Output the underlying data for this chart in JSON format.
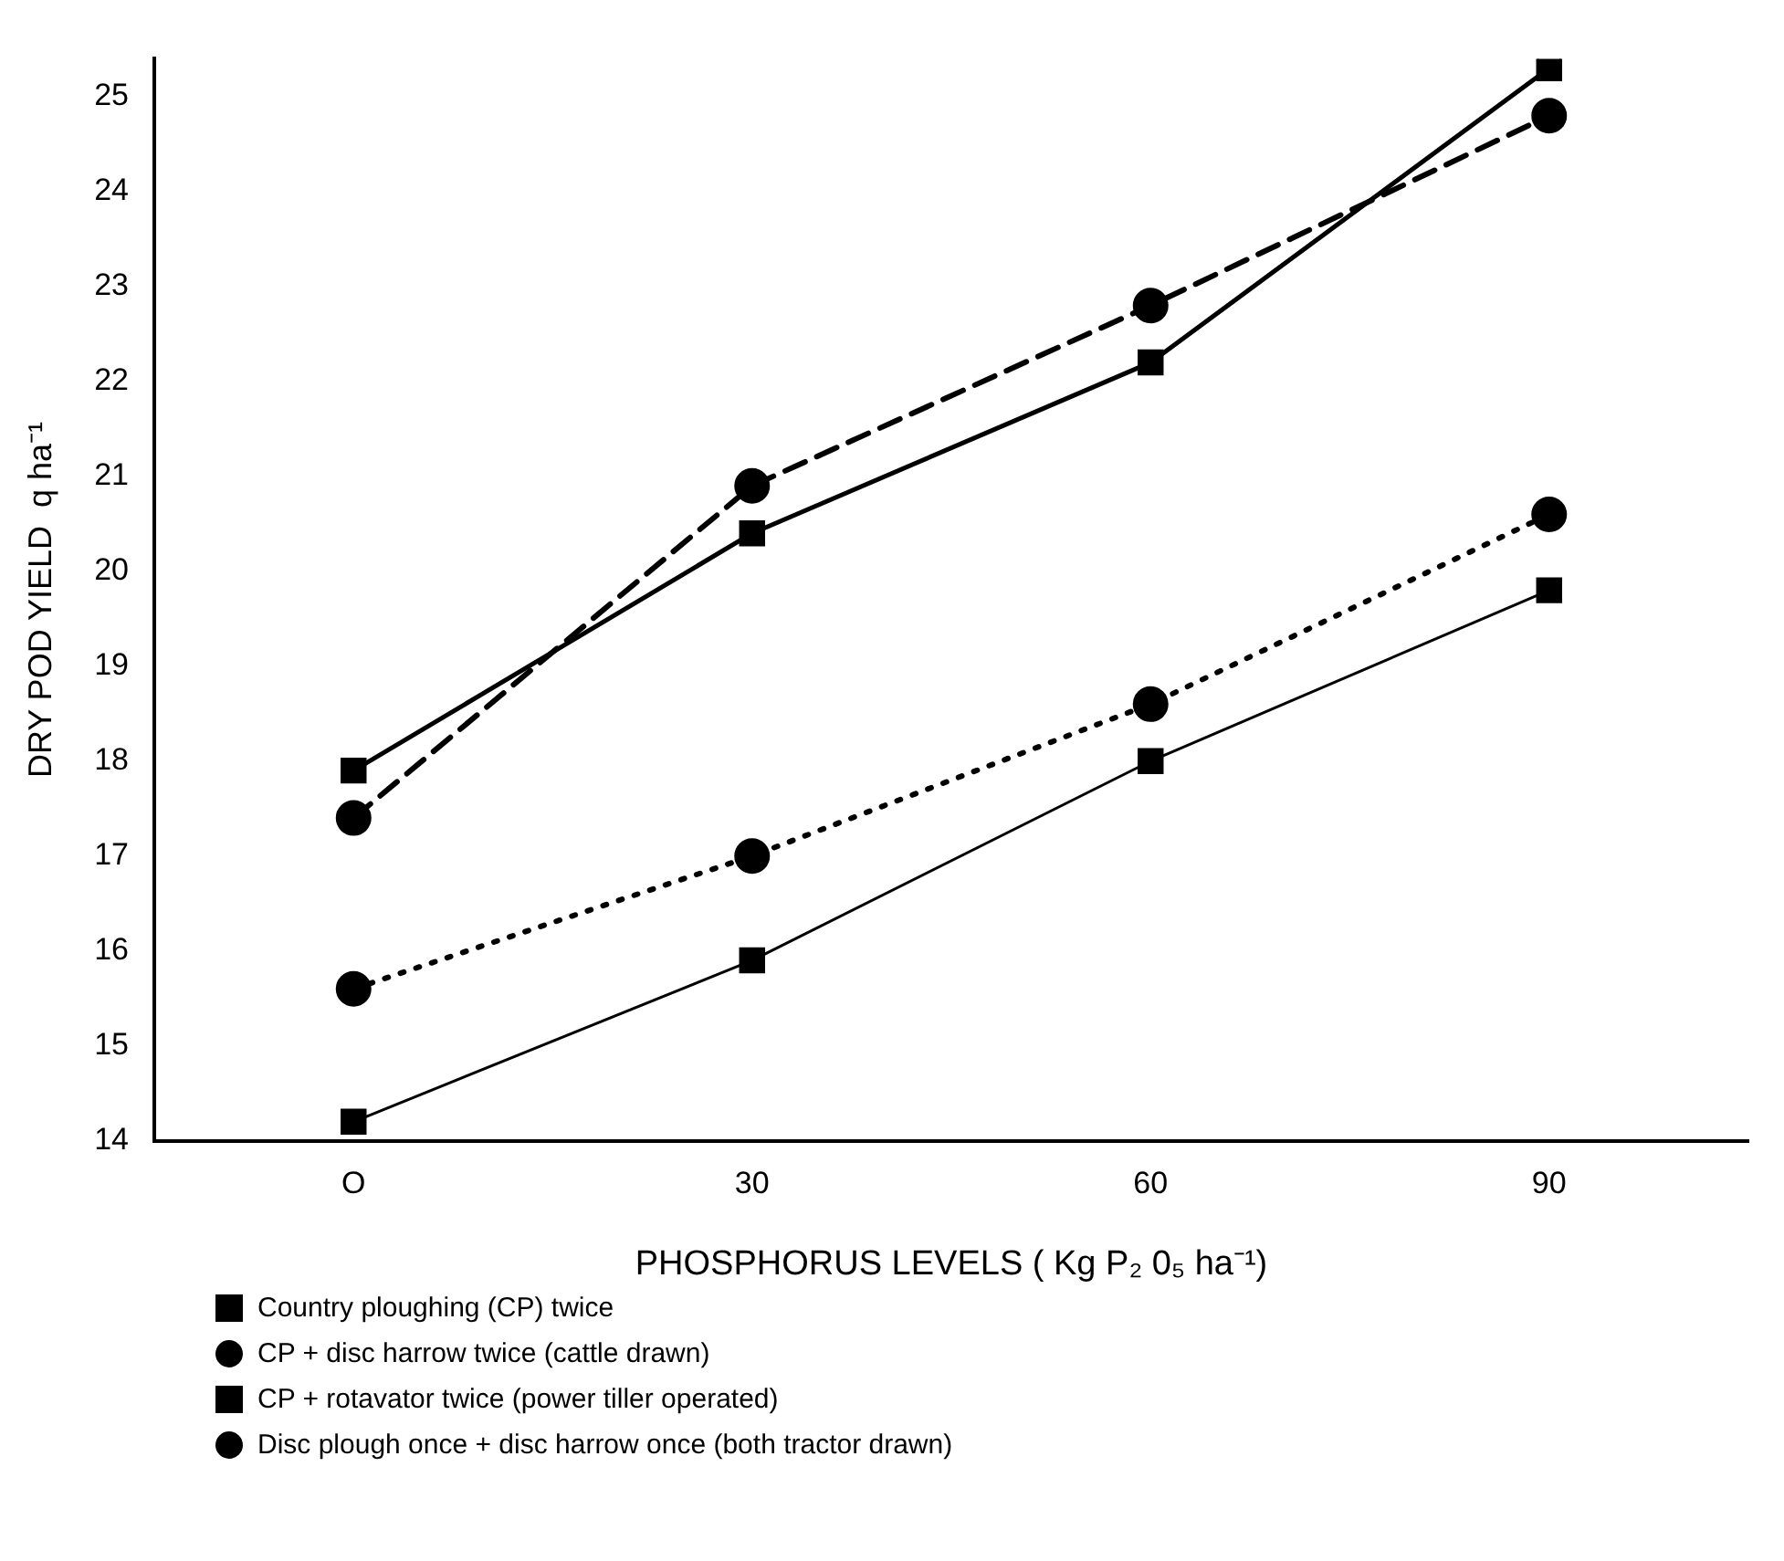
{
  "chart_data": {
    "type": "line",
    "xlabel": "PHOSPHORUS LEVELS ( Kg P₂ 0₅ ha⁻¹)",
    "ylabel": "DRY POD YIELD  q ha⁻¹",
    "categories": [
      "O",
      "30",
      "60",
      "90"
    ],
    "ylim": [
      14,
      25.4
    ],
    "yticks": [
      14,
      15,
      16,
      17,
      18,
      19,
      20,
      21,
      22,
      23,
      24,
      25
    ],
    "grid": false,
    "legend": "bottom",
    "series": [
      {
        "name": "Country ploughing (CP) twice",
        "color": "#000000",
        "marker": "square",
        "line_style": "solid",
        "values": [
          14.2,
          15.9,
          18.0,
          19.8
        ]
      },
      {
        "name": "CP + disc harrow twice (cattle drawn)",
        "color": "#000000",
        "marker": "circle",
        "line_style": "dotted",
        "values": [
          15.6,
          17.0,
          18.6,
          20.6
        ]
      },
      {
        "name": "CP + rotavator twice (power tiller operated)",
        "color": "#000000",
        "marker": "square",
        "line_style": "solid",
        "values": [
          17.9,
          20.4,
          22.2,
          25.3
        ]
      },
      {
        "name": "Disc plough once + disc harrow once (both tractor drawn)",
        "color": "#000000",
        "marker": "circle",
        "line_style": "dashed",
        "values": [
          17.4,
          20.9,
          22.8,
          24.8
        ]
      }
    ]
  }
}
